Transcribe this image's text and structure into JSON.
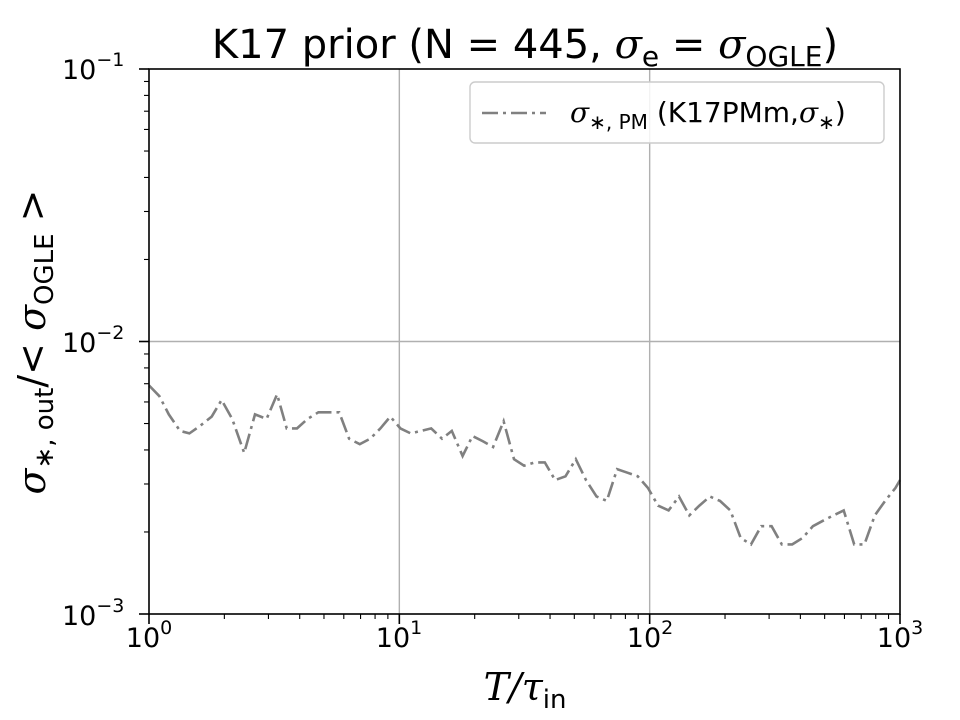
{
  "chart_data": {
    "type": "line",
    "title": "K17 prior (N = 445, σe = σOGLE)",
    "title_parts": {
      "pre": "K17 prior (N = 445, ",
      "sig1": "σ",
      "sub1": "e",
      "eq": " = ",
      "sig2": "σ",
      "sub2": "OGLE",
      "post": ")"
    },
    "xlabel": "T/τin",
    "xlabel_parts": {
      "main": "T/τ",
      "sub": "in"
    },
    "ylabel": "σ*, out/< σOGLE >",
    "ylabel_parts": {
      "sig1": "σ",
      "sub1": "∗, out",
      "mid": "/< ",
      "sig2": "σ",
      "sub2": "OGLE",
      "end": " >"
    },
    "x_scale": "log",
    "y_scale": "log",
    "xlim": [
      1,
      1000
    ],
    "ylim": [
      0.001,
      0.1
    ],
    "x_ticks": [
      {
        "base": "10",
        "exp": "0"
      },
      {
        "base": "10",
        "exp": "1"
      },
      {
        "base": "10",
        "exp": "2"
      },
      {
        "base": "10",
        "exp": "3"
      }
    ],
    "y_ticks": [
      {
        "base": "10",
        "exp": "−3"
      },
      {
        "base": "10",
        "exp": "−2"
      },
      {
        "base": "10",
        "exp": "−1"
      }
    ],
    "grid": true,
    "legend_position": "top-right",
    "legend_entry": {
      "sig": "σ",
      "sub": "∗, PM",
      "rest": " (K17PMm,",
      "sig2": "σ",
      "sub2": "∗",
      "end": ")"
    },
    "series": [
      {
        "name": "σ*,PM (K17PMm,σ*)",
        "color": "#808080",
        "style": "dashdot",
        "x": [
          1.0,
          1.1,
          1.2,
          1.33,
          1.45,
          1.6,
          1.78,
          1.95,
          2.15,
          2.4,
          2.65,
          2.95,
          3.25,
          3.55,
          3.9,
          4.3,
          4.75,
          5.25,
          5.75,
          6.3,
          6.95,
          7.65,
          8.4,
          9.2,
          10.1,
          11.1,
          12.2,
          13.4,
          14.8,
          16.2,
          17.9,
          19.6,
          21.6,
          23.7,
          26.1,
          28.7,
          31.5,
          34.7,
          38.1,
          41.9,
          46.1,
          50.7,
          55.7,
          61.3,
          67.4,
          74.1,
          81.5,
          89.6,
          98.5,
          108,
          119,
          131,
          144,
          158,
          174,
          191,
          210,
          231,
          254,
          279,
          307,
          337,
          371,
          408,
          449,
          493,
          542,
          596,
          656,
          721,
          793,
          872,
          959,
          1000
        ],
        "y": [
          0.0069,
          0.0063,
          0.0054,
          0.0047,
          0.0046,
          0.0049,
          0.0053,
          0.0061,
          0.0052,
          0.0039,
          0.0054,
          0.0052,
          0.0064,
          0.0048,
          0.0048,
          0.0052,
          0.0055,
          0.0055,
          0.0055,
          0.0044,
          0.0042,
          0.0044,
          0.0048,
          0.0053,
          0.0048,
          0.0046,
          0.0047,
          0.0048,
          0.0044,
          0.0047,
          0.0038,
          0.0045,
          0.0043,
          0.0041,
          0.0051,
          0.0037,
          0.0035,
          0.0036,
          0.0036,
          0.0031,
          0.0032,
          0.0037,
          0.0031,
          0.0027,
          0.0026,
          0.0034,
          0.0033,
          0.0032,
          0.0029,
          0.0025,
          0.0024,
          0.0027,
          0.0023,
          0.0025,
          0.0027,
          0.0026,
          0.0024,
          0.0019,
          0.0018,
          0.0021,
          0.0021,
          0.0018,
          0.0018,
          0.0019,
          0.0021,
          0.0022,
          0.0023,
          0.0024,
          0.0018,
          0.0018,
          0.0023,
          0.0026,
          0.0029,
          0.0031
        ]
      }
    ]
  }
}
